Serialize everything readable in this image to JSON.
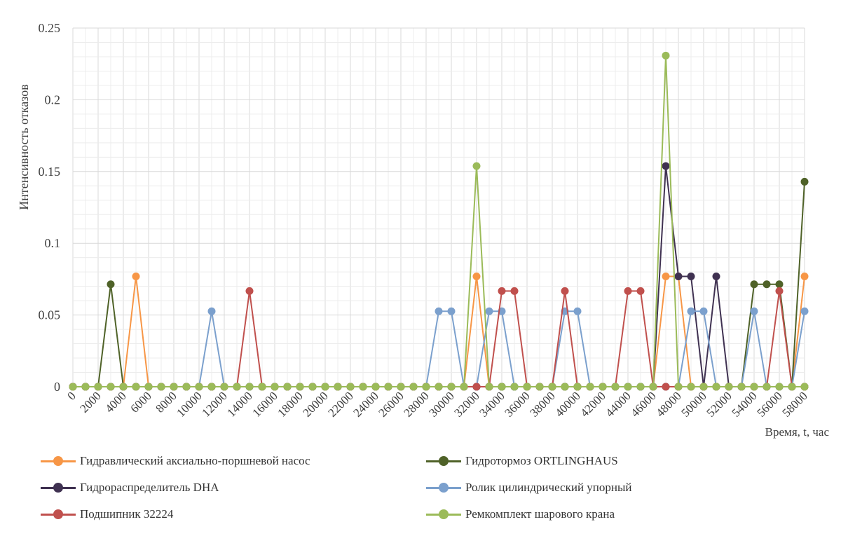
{
  "chart_data": {
    "type": "line",
    "title": "",
    "xlabel": "Время, t, час",
    "ylabel": "Интенсивность отказов",
    "ylim": [
      0,
      0.25
    ],
    "yticks": [
      "0",
      "0.05",
      "0.1",
      "0.15",
      "0.2",
      "0.25"
    ],
    "x": [
      0,
      1000,
      2000,
      3000,
      4000,
      5000,
      6000,
      7000,
      8000,
      9000,
      10000,
      11000,
      12000,
      13000,
      14000,
      15000,
      16000,
      17000,
      18000,
      19000,
      20000,
      21000,
      22000,
      23000,
      24000,
      25000,
      26000,
      27000,
      28000,
      29000,
      30000,
      31000,
      32000,
      33000,
      34000,
      35000,
      36000,
      37000,
      38000,
      39000,
      40000,
      41000,
      42000,
      43000,
      44000,
      45000,
      46000,
      47000,
      48000,
      49000,
      50000,
      51000,
      52000,
      53000,
      54000,
      55000,
      56000,
      57000,
      58000
    ],
    "xticks": [
      "0",
      "2000",
      "4000",
      "6000",
      "8000",
      "10000",
      "12000",
      "14000",
      "16000",
      "18000",
      "20000",
      "22000",
      "24000",
      "26000",
      "28000",
      "30000",
      "32000",
      "34000",
      "36000",
      "38000",
      "40000",
      "42000",
      "44000",
      "46000",
      "48000",
      "50000",
      "52000",
      "54000",
      "56000",
      "58000"
    ],
    "grid": true,
    "legend_position": "bottom",
    "series": [
      {
        "name": "Гидравлический аксиально-поршневой насос",
        "color": "#F79646",
        "values": [
          0,
          0,
          0,
          0,
          0,
          0.0769,
          0,
          0,
          0,
          0,
          0,
          0,
          0,
          0,
          0,
          0,
          0,
          0,
          0,
          0,
          0,
          0,
          0,
          0,
          0,
          0,
          0,
          0,
          0,
          0,
          0,
          0,
          0.0769,
          0,
          0,
          0,
          0,
          0,
          0,
          0,
          0,
          0,
          0,
          0,
          0,
          0,
          0,
          0.0769,
          0.0769,
          0,
          0,
          0,
          0,
          0,
          0,
          0,
          0,
          0,
          0.0769
        ]
      },
      {
        "name": "Гидротормоз ORTLINGHAUS",
        "color": "#4F6228",
        "values": [
          0,
          0,
          0,
          0.0714,
          0,
          0,
          0,
          0,
          0,
          0,
          0,
          0,
          0,
          0,
          0,
          0,
          0,
          0,
          0,
          0,
          0,
          0,
          0,
          0,
          0,
          0,
          0,
          0,
          0,
          0,
          0,
          0,
          0,
          0,
          0,
          0,
          0,
          0,
          0,
          0,
          0,
          0,
          0,
          0,
          0,
          0,
          0,
          0,
          0,
          0,
          0,
          0,
          0,
          0,
          0.0714,
          0.0714,
          0.0714,
          0,
          0.1429
        ]
      },
      {
        "name": "Гидрораспределитель DHA",
        "color": "#3F3151",
        "values": [
          0,
          0,
          0,
          0,
          0,
          0,
          0,
          0,
          0,
          0,
          0,
          0,
          0,
          0,
          0,
          0,
          0,
          0,
          0,
          0,
          0,
          0,
          0,
          0,
          0,
          0,
          0,
          0,
          0,
          0,
          0,
          0,
          0,
          0,
          0,
          0,
          0,
          0,
          0,
          0,
          0,
          0,
          0,
          0,
          0,
          0,
          0,
          0.1538,
          0.0769,
          0.0769,
          0,
          0.0769,
          0,
          0,
          0,
          0,
          0,
          0,
          0
        ]
      },
      {
        "name": "Ролик цилиндрический упорный",
        "color": "#7BA0CD",
        "values": [
          0,
          0,
          0,
          0,
          0,
          0,
          0,
          0,
          0,
          0,
          0,
          0.0526,
          0,
          0,
          0,
          0,
          0,
          0,
          0,
          0,
          0,
          0,
          0,
          0,
          0,
          0,
          0,
          0,
          0,
          0.0526,
          0.0526,
          0,
          0,
          0.0526,
          0.0526,
          0,
          0,
          0,
          0,
          0.0526,
          0.0526,
          0,
          0,
          0,
          0,
          0,
          0,
          0,
          0,
          0.0526,
          0.0526,
          0,
          0,
          0,
          0.0526,
          0,
          0,
          0,
          0.0526
        ]
      },
      {
        "name": "Подшипник 32224",
        "color": "#C0504D",
        "values": [
          0,
          0,
          0,
          0,
          0,
          0,
          0,
          0,
          0,
          0,
          0,
          0,
          0,
          0,
          0.0667,
          0,
          0,
          0,
          0,
          0,
          0,
          0,
          0,
          0,
          0,
          0,
          0,
          0,
          0,
          0,
          0,
          0,
          0,
          0,
          0.0667,
          0.0667,
          0,
          0,
          0,
          0.0667,
          0,
          0,
          0,
          0,
          0.0667,
          0.0667,
          0,
          0,
          0,
          0,
          0,
          0,
          0,
          0,
          0,
          0,
          0.0667,
          0,
          0
        ]
      },
      {
        "name": "Ремкомплект шарового крана",
        "color": "#9BBB59",
        "values": [
          0,
          0,
          0,
          0,
          0,
          0,
          0,
          0,
          0,
          0,
          0,
          0,
          0,
          0,
          0,
          0,
          0,
          0,
          0,
          0,
          0,
          0,
          0,
          0,
          0,
          0,
          0,
          0,
          0,
          0,
          0,
          0,
          0.1538,
          0,
          0,
          0,
          0,
          0,
          0,
          0,
          0,
          0,
          0,
          0,
          0,
          0,
          0,
          0.2308,
          0,
          0,
          0,
          0,
          0,
          0,
          0,
          0,
          0,
          0,
          0
        ]
      }
    ]
  }
}
